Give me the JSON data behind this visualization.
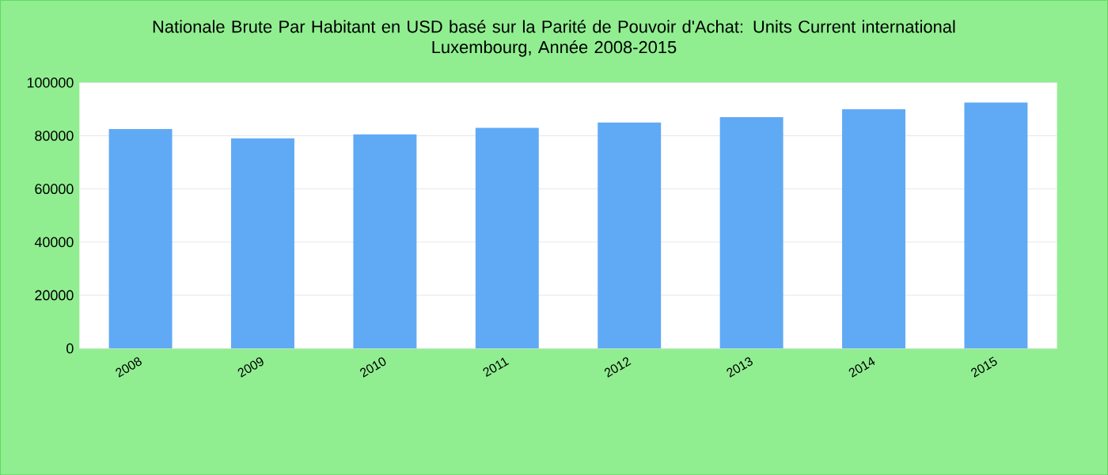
{
  "chart_data": {
    "type": "bar",
    "title": "Nationale Brute Par Habitant en USD basé sur la Parité de Pouvoir d'Achat: Units Current international",
    "subtitle": "Luxembourg, Année 2008-2015",
    "categories": [
      "2008",
      "2009",
      "2010",
      "2011",
      "2012",
      "2013",
      "2014",
      "2015"
    ],
    "values": [
      82500,
      79000,
      80500,
      83000,
      85000,
      87000,
      90000,
      92500
    ],
    "color": "#60aaf5",
    "ylim": [
      0,
      100000
    ],
    "yticks": [
      0,
      20000,
      40000,
      60000,
      80000,
      100000
    ],
    "grid": "y"
  }
}
